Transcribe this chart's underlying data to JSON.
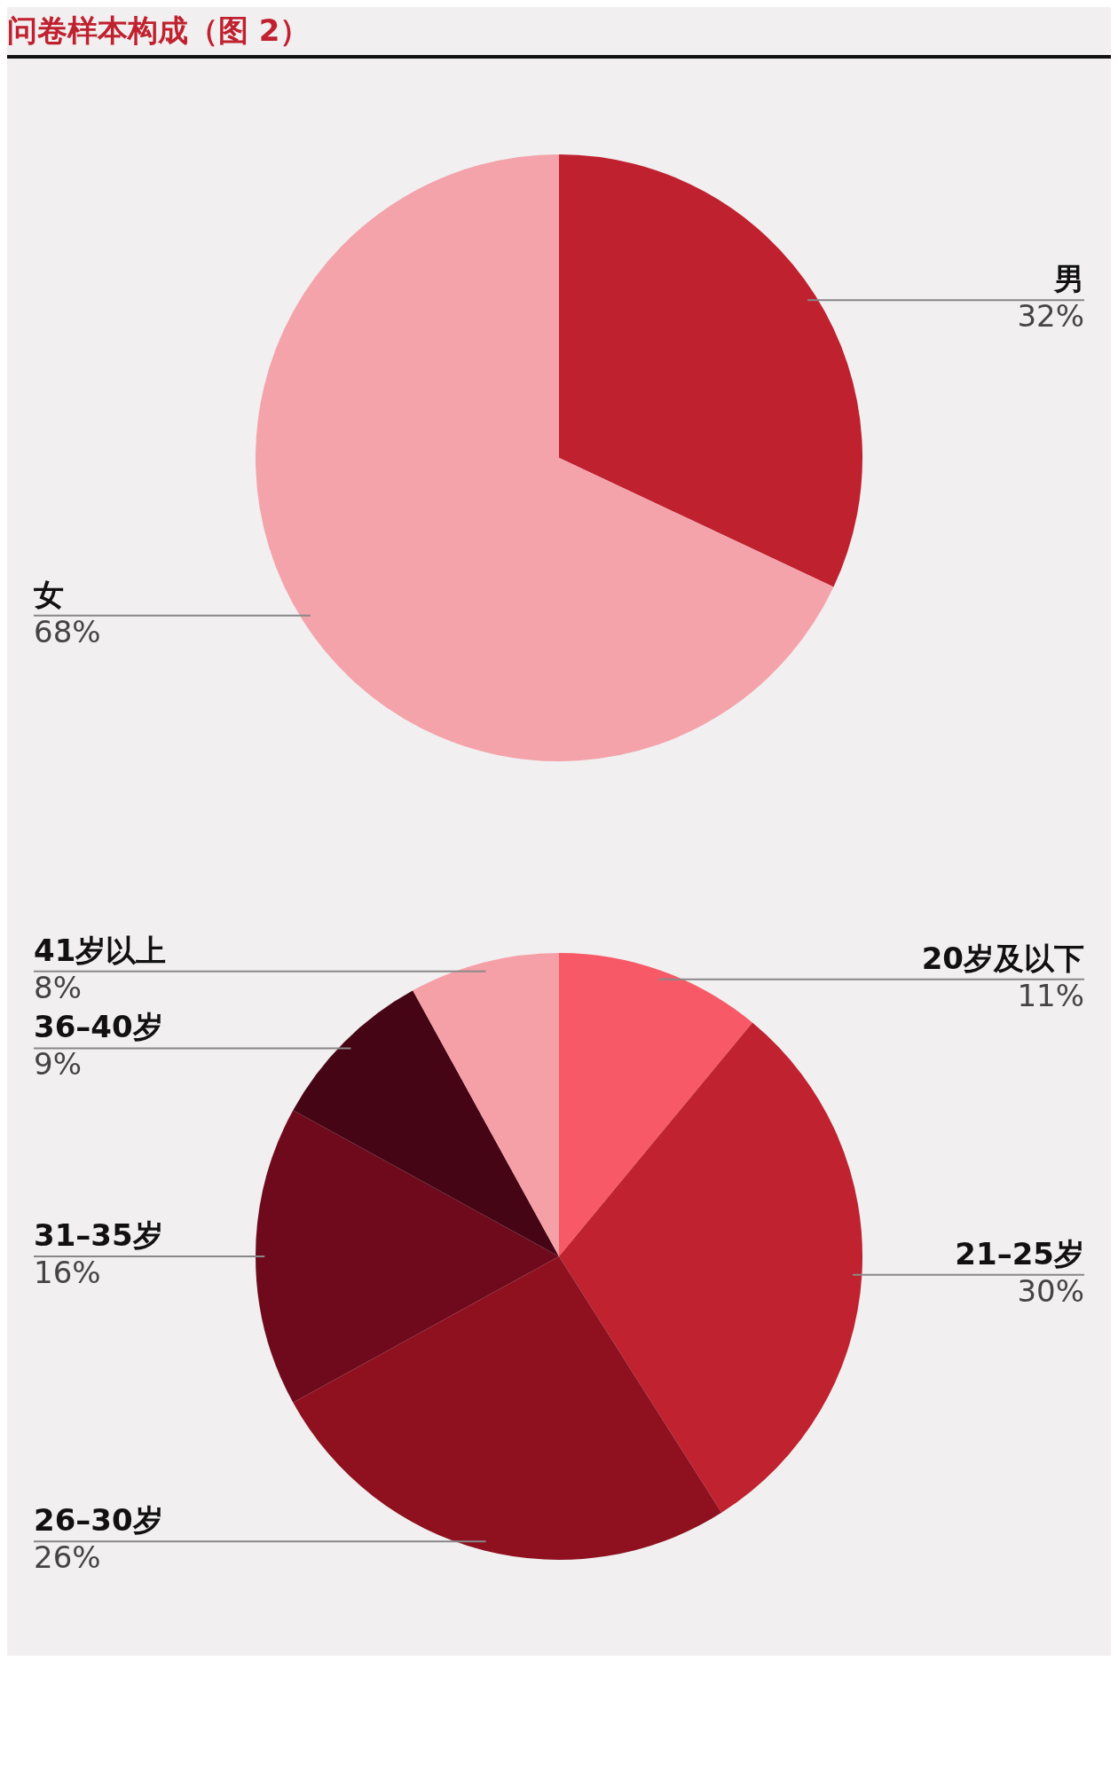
{
  "chart_data": [
    {
      "type": "pie",
      "title": "问卷样本构成（图 2）",
      "categories": [
        "男",
        "女"
      ],
      "values": [
        32,
        68
      ],
      "colors": [
        "#c0212f",
        "#f4a3aa"
      ],
      "value_labels": [
        "32%",
        "68%"
      ],
      "legend": false
    },
    {
      "type": "pie",
      "categories": [
        "20岁及以下",
        "21–25岁",
        "26–30岁",
        "31–35岁",
        "36–40岁",
        "41岁以上"
      ],
      "values": [
        11,
        30,
        26,
        16,
        9,
        8
      ],
      "colors": [
        "#f75a66",
        "#c0222f",
        "#8f1120",
        "#6e0a1c",
        "#460514",
        "#f5a0a6"
      ],
      "value_labels": [
        "11%",
        "30%",
        "26%",
        "16%",
        "9%",
        "8%"
      ],
      "legend": false
    }
  ]
}
